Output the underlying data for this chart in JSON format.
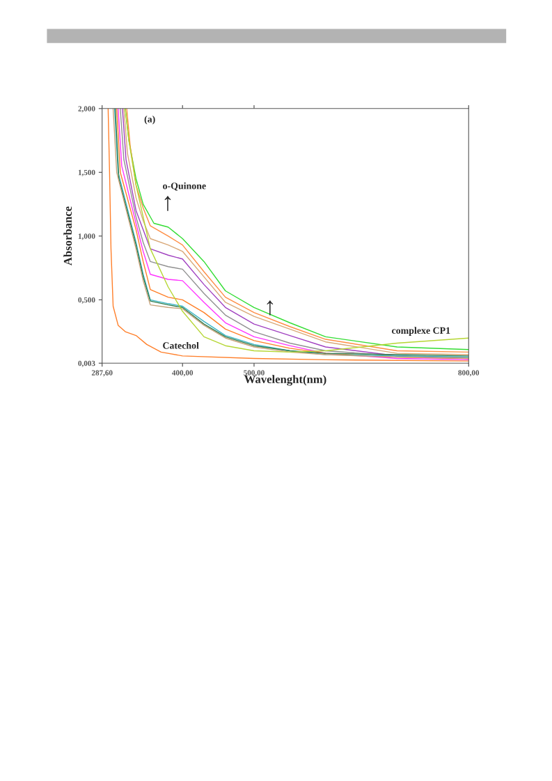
{
  "chart_data": {
    "type": "line",
    "xlabel": "Wavelenght(nm)",
    "ylabel": "Absorbance",
    "xlim": [
      287.6,
      800
    ],
    "xticks": [
      {
        "value": 287.6,
        "label": "287,60"
      },
      {
        "value": 400,
        "label": "400,00"
      },
      {
        "value": 500,
        "label": "500,00"
      },
      {
        "value": 800,
        "label": "800,00"
      }
    ],
    "ylim": [
      0.003,
      2.0
    ],
    "yticks": [
      {
        "value": 0.003,
        "label": "0,003"
      },
      {
        "value": 0.5,
        "label": "0,500"
      },
      {
        "value": 1.0,
        "label": "1,000"
      },
      {
        "value": 1.5,
        "label": "1,500"
      },
      {
        "value": 2.0,
        "label": "2,000"
      }
    ],
    "grid": false,
    "legend": false,
    "marker": "none",
    "line_style": "solid",
    "series": [
      {
        "color": "#33dd33",
        "x": [
          320,
          325,
          335,
          345,
          360,
          380,
          400,
          430,
          460,
          500,
          550,
          600,
          700,
          800
        ],
        "values": [
          2.0,
          1.75,
          1.45,
          1.25,
          1.1,
          1.07,
          0.98,
          0.8,
          0.57,
          0.44,
          0.32,
          0.21,
          0.13,
          0.11
        ]
      },
      {
        "color": "#ff8c42",
        "x": [
          322,
          327,
          335,
          345,
          355,
          380,
          400,
          430,
          460,
          500,
          550,
          600,
          700,
          800
        ],
        "values": [
          2.0,
          1.7,
          1.4,
          1.22,
          1.08,
          1.0,
          0.93,
          0.72,
          0.52,
          0.4,
          0.29,
          0.19,
          0.1,
          0.09
        ]
      },
      {
        "color": "#d9a877",
        "x": [
          318,
          323,
          335,
          345,
          355,
          380,
          400,
          430,
          460,
          500,
          550,
          600,
          700,
          800
        ],
        "values": [
          2.0,
          1.65,
          1.3,
          1.12,
          0.98,
          0.93,
          0.88,
          0.68,
          0.48,
          0.37,
          0.27,
          0.17,
          0.08,
          0.07
        ]
      },
      {
        "color": "#a040c0",
        "x": [
          316,
          321,
          335,
          345,
          355,
          380,
          400,
          430,
          460,
          500,
          550,
          600,
          700,
          800
        ],
        "values": [
          2.0,
          1.6,
          1.2,
          1.05,
          0.9,
          0.85,
          0.82,
          0.62,
          0.44,
          0.31,
          0.22,
          0.13,
          0.06,
          0.04
        ]
      },
      {
        "color": "#909090",
        "x": [
          313,
          318,
          335,
          345,
          355,
          380,
          400,
          430,
          460,
          500,
          550,
          600,
          700,
          800
        ],
        "values": [
          2.0,
          1.6,
          1.15,
          0.95,
          0.8,
          0.76,
          0.74,
          0.55,
          0.38,
          0.25,
          0.16,
          0.1,
          0.06,
          0.05
        ]
      },
      {
        "color": "#ff33ff",
        "x": [
          310,
          315,
          335,
          345,
          355,
          380,
          400,
          430,
          460,
          500,
          550,
          600,
          700,
          800
        ],
        "values": [
          2.0,
          1.55,
          1.1,
          0.88,
          0.7,
          0.66,
          0.65,
          0.48,
          0.32,
          0.21,
          0.14,
          0.08,
          0.04,
          0.03
        ]
      },
      {
        "color": "#ff7f27",
        "x": [
          308,
          313,
          335,
          345,
          355,
          380,
          400,
          430,
          460,
          500,
          550,
          600,
          700,
          800
        ],
        "values": [
          2.0,
          1.5,
          1.05,
          0.8,
          0.58,
          0.52,
          0.5,
          0.4,
          0.27,
          0.18,
          0.12,
          0.08,
          0.05,
          0.04
        ]
      },
      {
        "color": "#3bb5c4",
        "x": [
          305,
          310,
          335,
          345,
          355,
          380,
          400,
          430,
          460,
          500,
          550,
          600,
          700,
          800
        ],
        "values": [
          2.0,
          1.5,
          0.95,
          0.7,
          0.5,
          0.47,
          0.45,
          0.33,
          0.22,
          0.15,
          0.1,
          0.07,
          0.06,
          0.05
        ]
      },
      {
        "color": "#2e7d4f",
        "x": [
          306,
          311,
          335,
          345,
          355,
          380,
          400,
          430,
          460,
          500,
          550,
          600,
          700,
          800
        ],
        "values": [
          2.0,
          1.45,
          0.93,
          0.68,
          0.49,
          0.46,
          0.44,
          0.31,
          0.21,
          0.14,
          0.1,
          0.08,
          0.07,
          0.06
        ]
      },
      {
        "color": "#c8a27a",
        "x": [
          303,
          308,
          335,
          345,
          355,
          380,
          400,
          430,
          460,
          500,
          550,
          600,
          700,
          800
        ],
        "values": [
          2.0,
          1.5,
          0.9,
          0.65,
          0.46,
          0.44,
          0.43,
          0.3,
          0.2,
          0.13,
          0.09,
          0.07,
          0.05,
          0.04
        ]
      },
      {
        "color": "#b5d633",
        "x": [
          320,
          325,
          335,
          345,
          355,
          380,
          400,
          430,
          460,
          500,
          550,
          600,
          700,
          800
        ],
        "values": [
          2.0,
          1.75,
          1.4,
          1.15,
          0.9,
          0.6,
          0.41,
          0.21,
          0.14,
          0.1,
          0.09,
          0.1,
          0.16,
          0.2
        ]
      },
      {
        "color": "#ff7f2a",
        "x": [
          296,
          298,
          300,
          303,
          310,
          320,
          335,
          350,
          370,
          400,
          500,
          600,
          800
        ],
        "values": [
          2.0,
          1.5,
          0.9,
          0.45,
          0.3,
          0.25,
          0.22,
          0.15,
          0.09,
          0.06,
          0.04,
          0.03,
          0.02
        ]
      }
    ],
    "annotations": [
      "(a)",
      "o-Quinone",
      "↑",
      "↑",
      {
        "text": "Catechol",
        "x": 372,
        "y": 0.1
      },
      "complexe CP1"
    ]
  }
}
